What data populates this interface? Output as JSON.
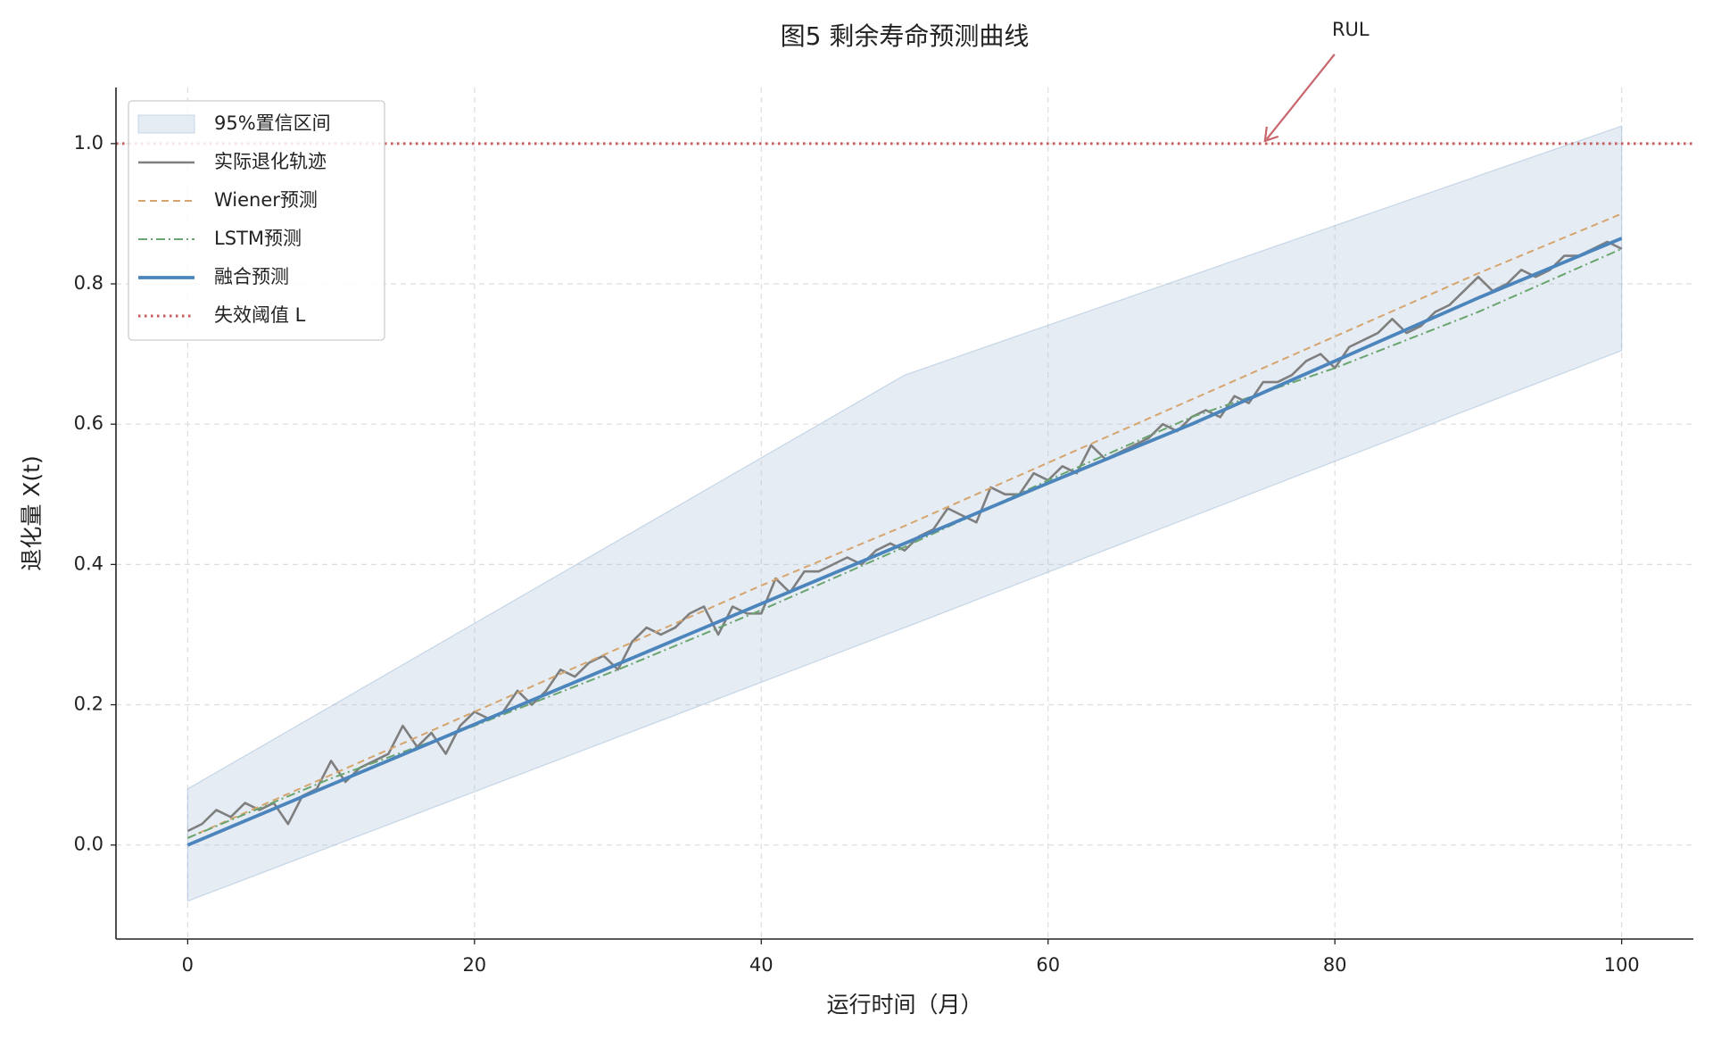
{
  "chart_data": {
    "type": "line",
    "title": "图5  剩余寿命预测曲线",
    "xlabel": "运行时间（月）",
    "ylabel": "退化量 X(t)",
    "xlim": [
      -5,
      105
    ],
    "ylim": [
      -0.134,
      1.08
    ],
    "xticks": [
      0,
      20,
      40,
      60,
      80,
      100
    ],
    "yticks": [
      {
        "value": 0,
        "label": "0.0"
      },
      0.2,
      0.4,
      0.6,
      0.8,
      {
        "value": 1,
        "label": "1.0"
      }
    ],
    "grid": true,
    "legend": "upper left",
    "series": [
      {
        "name": "95%置信区间",
        "style": "band",
        "color": "#a9c1da",
        "x": [
          0,
          50,
          100
        ],
        "lower": [
          -0.08,
          0.31,
          0.705
        ],
        "upper": [
          0.08,
          0.67,
          1.025
        ]
      },
      {
        "name": "实际退化轨迹",
        "style": "solid",
        "color": "#7f7f7f",
        "x": [
          0,
          1,
          2,
          3,
          4,
          5,
          6,
          7,
          8,
          9,
          10,
          11,
          12,
          13,
          14,
          15,
          16,
          17,
          18,
          19,
          20,
          21,
          22,
          23,
          24,
          25,
          26,
          27,
          28,
          29,
          30,
          31,
          32,
          33,
          34,
          35,
          36,
          37,
          38,
          39,
          40,
          41,
          42,
          43,
          44,
          45,
          46,
          47,
          48,
          49,
          50,
          51,
          52,
          53,
          54,
          55,
          56,
          57,
          58,
          59,
          60,
          61,
          62,
          63,
          64,
          65,
          66,
          67,
          68,
          69,
          70,
          71,
          72,
          73,
          74,
          75,
          76,
          77,
          78,
          79,
          80,
          81,
          82,
          83,
          84,
          85,
          86,
          87,
          88,
          89,
          90,
          91,
          92,
          93,
          94,
          95,
          96,
          97,
          98,
          99,
          100
        ],
        "values": [
          0.02,
          0.03,
          0.05,
          0.04,
          0.06,
          0.05,
          0.06,
          0.03,
          0.07,
          0.08,
          0.12,
          0.09,
          0.11,
          0.12,
          0.13,
          0.17,
          0.14,
          0.16,
          0.13,
          0.17,
          0.19,
          0.18,
          0.19,
          0.22,
          0.2,
          0.22,
          0.25,
          0.24,
          0.26,
          0.27,
          0.25,
          0.29,
          0.31,
          0.3,
          0.31,
          0.33,
          0.34,
          0.3,
          0.34,
          0.33,
          0.33,
          0.38,
          0.36,
          0.39,
          0.39,
          0.4,
          0.41,
          0.4,
          0.42,
          0.43,
          0.42,
          0.44,
          0.45,
          0.48,
          0.47,
          0.46,
          0.51,
          0.5,
          0.5,
          0.53,
          0.52,
          0.54,
          0.53,
          0.57,
          0.55,
          0.56,
          0.57,
          0.58,
          0.6,
          0.59,
          0.61,
          0.62,
          0.61,
          0.64,
          0.63,
          0.66,
          0.66,
          0.67,
          0.69,
          0.7,
          0.68,
          0.71,
          0.72,
          0.73,
          0.75,
          0.73,
          0.74,
          0.76,
          0.77,
          0.79,
          0.81,
          0.79,
          0.8,
          0.82,
          0.81,
          0.82,
          0.84,
          0.84,
          0.85,
          0.86,
          0.85
        ]
      },
      {
        "name": "Wiener预测",
        "style": "dashed",
        "color": "#d6a56d",
        "x": [
          0,
          10,
          20,
          30,
          40,
          50,
          60,
          70,
          80,
          90,
          100
        ],
        "values": [
          0.01,
          0.1,
          0.19,
          0.28,
          0.37,
          0.455,
          0.545,
          0.635,
          0.725,
          0.815,
          0.9
        ]
      },
      {
        "name": "LSTM预测",
        "style": "dashdot",
        "color": "#6aa56f",
        "x": [
          0,
          10,
          20,
          30,
          40,
          50,
          60,
          70,
          80,
          90,
          100
        ],
        "values": [
          0.01,
          0.095,
          0.17,
          0.25,
          0.335,
          0.425,
          0.52,
          0.61,
          0.68,
          0.76,
          0.85
        ]
      },
      {
        "name": "融合预测",
        "style": "thick",
        "color": "#4c85bb",
        "x": [
          0,
          10,
          20,
          30,
          40,
          50,
          60,
          70,
          80,
          90,
          100
        ],
        "values": [
          0,
          0.086,
          0.172,
          0.258,
          0.344,
          0.43,
          0.516,
          0.6,
          0.69,
          0.78,
          0.865
        ]
      },
      {
        "name": "失效阈值 L",
        "style": "hline",
        "color": "#c95b5b",
        "value": 1.0
      }
    ],
    "annotation": {
      "text": "RUL",
      "x": 75,
      "y": 1.0,
      "color": "#c9666d"
    }
  }
}
